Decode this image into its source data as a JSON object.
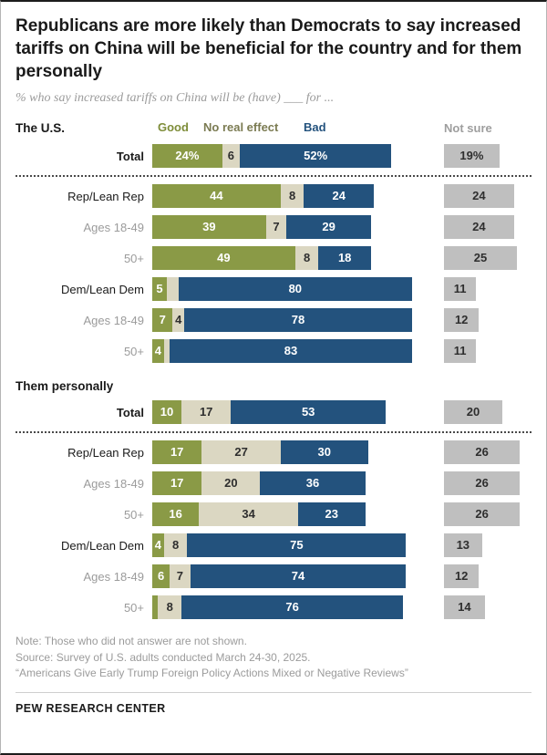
{
  "title": "Republicans are more likely than Democrats to say increased tariffs on China will be beneficial for the country and for them personally",
  "subtitle": "% who say increased tariffs on China will be (have) ___ for ...",
  "legend": {
    "good": "Good",
    "no_effect": "No real effect",
    "bad": "Bad",
    "not_sure": "Not sure"
  },
  "colors": {
    "good": "#8a9a46",
    "no_effect": "#dbd7c2",
    "bad": "#23527d",
    "not_sure": "#bfbfbf",
    "sub_label": "#9b9b9b",
    "title_text": "#1a1a1a"
  },
  "chart_data": {
    "type": "bar",
    "stacked": true,
    "orientation": "horizontal",
    "unit": "%",
    "title": "Republicans are more likely than Democrats to say increased tariffs on China will be beneficial for the country and for them personally",
    "subtitle": "% who say increased tariffs on China will be (have) ___ for ...",
    "series_names": [
      "Good",
      "No real effect",
      "Bad",
      "Not sure"
    ],
    "xlim": [
      0,
      100
    ],
    "legend_position": "top",
    "grid": false,
    "sections": [
      {
        "header": "The U.S.",
        "rows": [
          {
            "label": "Total",
            "label_style": "total",
            "divider_after": true,
            "segments": [
              {
                "key": "good",
                "value": 24,
                "text": "24%"
              },
              {
                "key": "no_effect",
                "value": 6,
                "text": "6"
              },
              {
                "key": "bad",
                "value": 52,
                "text": "52%"
              }
            ],
            "not_sure": {
              "value": 19,
              "text": "19%"
            }
          },
          {
            "label": "Rep/Lean Rep",
            "label_style": "party",
            "segments": [
              {
                "key": "good",
                "value": 44,
                "text": "44"
              },
              {
                "key": "no_effect",
                "value": 8,
                "text": "8"
              },
              {
                "key": "bad",
                "value": 24,
                "text": "24"
              }
            ],
            "not_sure": {
              "value": 24,
              "text": "24"
            }
          },
          {
            "label": "Ages 18-49",
            "label_style": "sub",
            "segments": [
              {
                "key": "good",
                "value": 39,
                "text": "39"
              },
              {
                "key": "no_effect",
                "value": 7,
                "text": "7"
              },
              {
                "key": "bad",
                "value": 29,
                "text": "29"
              }
            ],
            "not_sure": {
              "value": 24,
              "text": "24"
            }
          },
          {
            "label": "50+",
            "label_style": "sub",
            "segments": [
              {
                "key": "good",
                "value": 49,
                "text": "49"
              },
              {
                "key": "no_effect",
                "value": 8,
                "text": "8"
              },
              {
                "key": "bad",
                "value": 18,
                "text": "18"
              }
            ],
            "not_sure": {
              "value": 25,
              "text": "25"
            }
          },
          {
            "label": "Dem/Lean Dem",
            "label_style": "party",
            "segments": [
              {
                "key": "good",
                "value": 5,
                "text": "5"
              },
              {
                "key": "no_effect",
                "value": 4,
                "text": ""
              },
              {
                "key": "bad",
                "value": 80,
                "text": "80"
              }
            ],
            "not_sure": {
              "value": 11,
              "text": "11"
            }
          },
          {
            "label": "Ages 18-49",
            "label_style": "sub",
            "segments": [
              {
                "key": "good",
                "value": 7,
                "text": "7"
              },
              {
                "key": "no_effect",
                "value": 4,
                "text": "4"
              },
              {
                "key": "bad",
                "value": 78,
                "text": "78"
              }
            ],
            "not_sure": {
              "value": 12,
              "text": "12"
            }
          },
          {
            "label": "50+",
            "label_style": "sub",
            "segments": [
              {
                "key": "good",
                "value": 4,
                "text": "4"
              },
              {
                "key": "no_effect",
                "value": 2,
                "text": ""
              },
              {
                "key": "bad",
                "value": 83,
                "text": "83"
              }
            ],
            "not_sure": {
              "value": 11,
              "text": "11"
            }
          }
        ]
      },
      {
        "header": "Them personally",
        "rows": [
          {
            "label": "Total",
            "label_style": "total",
            "divider_after": true,
            "segments": [
              {
                "key": "good",
                "value": 10,
                "text": "10"
              },
              {
                "key": "no_effect",
                "value": 17,
                "text": "17"
              },
              {
                "key": "bad",
                "value": 53,
                "text": "53"
              }
            ],
            "not_sure": {
              "value": 20,
              "text": "20"
            }
          },
          {
            "label": "Rep/Lean Rep",
            "label_style": "party",
            "segments": [
              {
                "key": "good",
                "value": 17,
                "text": "17"
              },
              {
                "key": "no_effect",
                "value": 27,
                "text": "27"
              },
              {
                "key": "bad",
                "value": 30,
                "text": "30"
              }
            ],
            "not_sure": {
              "value": 26,
              "text": "26"
            }
          },
          {
            "label": "Ages 18-49",
            "label_style": "sub",
            "segments": [
              {
                "key": "good",
                "value": 17,
                "text": "17"
              },
              {
                "key": "no_effect",
                "value": 20,
                "text": "20"
              },
              {
                "key": "bad",
                "value": 36,
                "text": "36"
              }
            ],
            "not_sure": {
              "value": 26,
              "text": "26"
            }
          },
          {
            "label": "50+",
            "label_style": "sub",
            "segments": [
              {
                "key": "good",
                "value": 16,
                "text": "16"
              },
              {
                "key": "no_effect",
                "value": 34,
                "text": "34"
              },
              {
                "key": "bad",
                "value": 23,
                "text": "23"
              }
            ],
            "not_sure": {
              "value": 26,
              "text": "26"
            }
          },
          {
            "label": "Dem/Lean Dem",
            "label_style": "party",
            "segments": [
              {
                "key": "good",
                "value": 4,
                "text": "4"
              },
              {
                "key": "no_effect",
                "value": 8,
                "text": "8"
              },
              {
                "key": "bad",
                "value": 75,
                "text": "75"
              }
            ],
            "not_sure": {
              "value": 13,
              "text": "13"
            }
          },
          {
            "label": "Ages 18-49",
            "label_style": "sub",
            "segments": [
              {
                "key": "good",
                "value": 6,
                "text": "6"
              },
              {
                "key": "no_effect",
                "value": 7,
                "text": "7"
              },
              {
                "key": "bad",
                "value": 74,
                "text": "74"
              }
            ],
            "not_sure": {
              "value": 12,
              "text": "12"
            }
          },
          {
            "label": "50+",
            "label_style": "sub",
            "segments": [
              {
                "key": "good",
                "value": 2,
                "text": ""
              },
              {
                "key": "no_effect",
                "value": 8,
                "text": "8"
              },
              {
                "key": "bad",
                "value": 76,
                "text": "76"
              }
            ],
            "not_sure": {
              "value": 14,
              "text": "14"
            }
          }
        ]
      }
    ]
  },
  "notes": [
    "Note: Those who did not answer are not shown.",
    "Source: Survey of U.S. adults conducted March 24-30, 2025.",
    "“Americans Give Early Trump Foreign Policy Actions Mixed or Negative Reviews”"
  ],
  "footer": "PEW RESEARCH CENTER"
}
